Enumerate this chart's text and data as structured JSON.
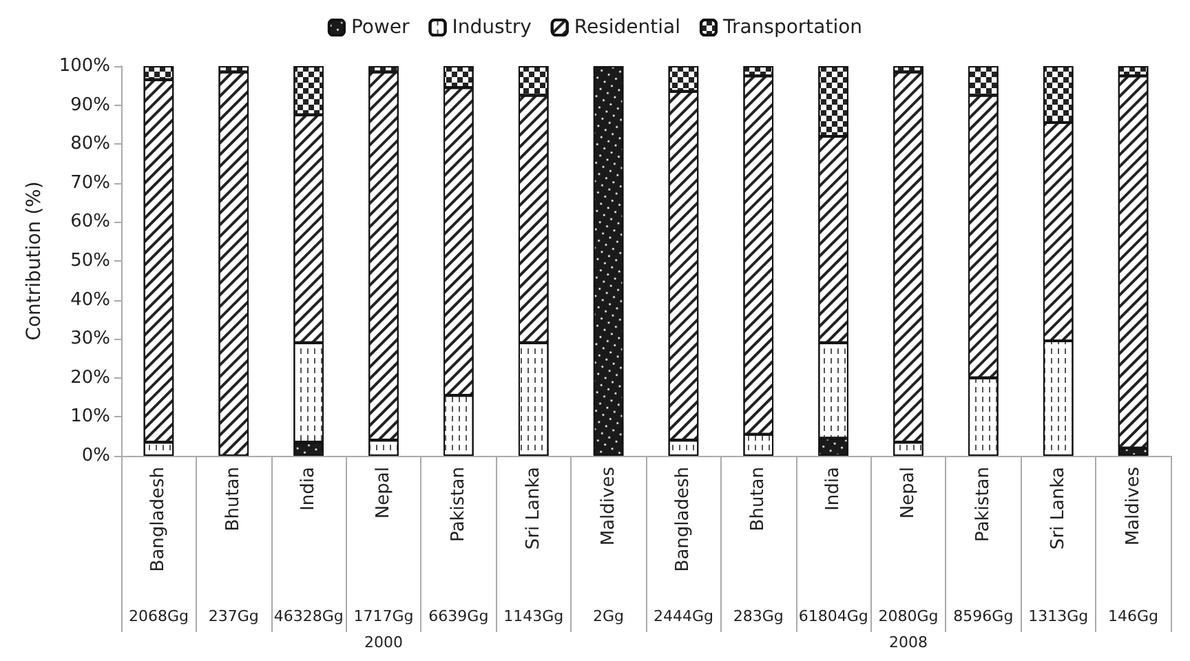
{
  "chart_data": {
    "type": "bar",
    "stacked": true,
    "ylabel": "Contribution (%)",
    "categories": [
      "Bangladesh",
      "Bhutan",
      "India",
      "Nepal",
      "Pakistan",
      "Sri Lanka",
      "Maldives",
      "Bangladesh",
      "Bhutan",
      "India",
      "Nepal",
      "Pakistan",
      "Sri Lanka",
      "Maldives"
    ],
    "series": [
      {
        "name": "Power",
        "color": "#1a1a1a",
        "values": [
          0,
          0,
          3.5,
          0,
          0,
          0,
          100,
          0,
          0,
          4.5,
          0,
          0,
          0,
          2
        ]
      },
      {
        "name": "Industry",
        "color": "#ffffff",
        "values": [
          3.5,
          0,
          25.5,
          4,
          15.5,
          29,
          0,
          4,
          5.5,
          24.5,
          3.5,
          20,
          29.5,
          0
        ]
      },
      {
        "name": "Residential",
        "color": "#ffffff",
        "values": [
          93,
          98.5,
          58.5,
          94.5,
          79,
          63.5,
          0,
          89.5,
          92,
          53,
          95,
          72.5,
          56,
          95.5
        ]
      },
      {
        "name": "Transportation",
        "color": "#ffffff",
        "values": [
          3.5,
          1.5,
          12.5,
          1.5,
          5.5,
          7.5,
          0,
          6.5,
          2.5,
          18,
          1.5,
          7.5,
          14.5,
          2.5
        ]
      }
    ],
    "ylim": [
      0,
      100
    ],
    "yticks": [
      {
        "value": 0,
        "label": "0%"
      },
      {
        "value": 10,
        "label": "10%"
      },
      {
        "value": 20,
        "label": "20%"
      },
      {
        "value": 30,
        "label": "30%"
      },
      {
        "value": 40,
        "label": "40%"
      },
      {
        "value": 50,
        "label": "50%"
      },
      {
        "value": 60,
        "label": "60%"
      },
      {
        "value": 70,
        "label": "70%"
      },
      {
        "value": 80,
        "label": "80%"
      },
      {
        "value": 90,
        "label": "90%"
      },
      {
        "value": 100,
        "label": "100%"
      }
    ],
    "annotations": [
      "2068Gg",
      "237Gg",
      "46328Gg",
      "1717Gg",
      "6639Gg",
      "1143Gg",
      "2Gg",
      "2444Gg",
      "283Gg",
      "61804Gg",
      "2080Gg",
      "8596Gg",
      "1313Gg",
      "146Gg",
      "2000",
      "2008"
    ],
    "grid": false,
    "legend": "top"
  }
}
